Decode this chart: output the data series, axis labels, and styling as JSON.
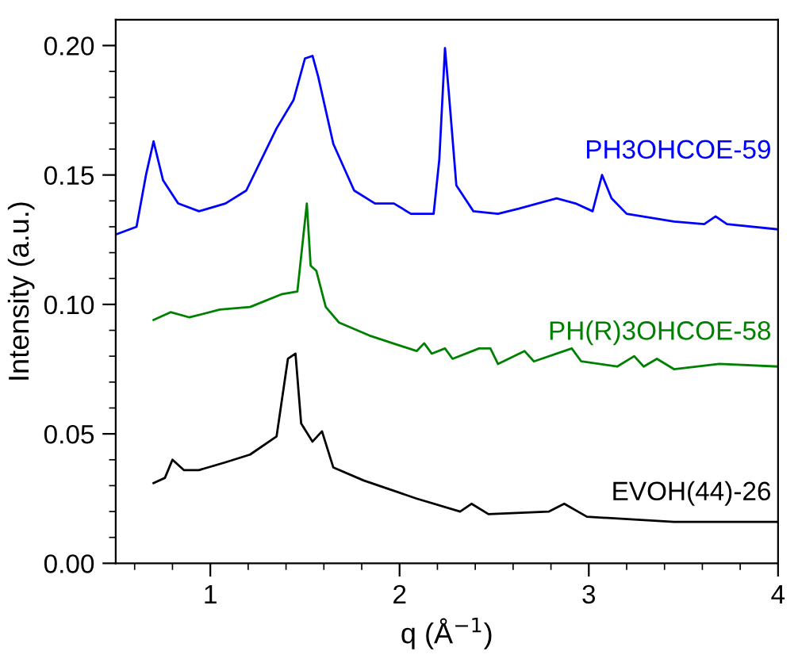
{
  "chart_data": {
    "type": "line",
    "xlabel": "q (Å$^{−1}$)",
    "ylabel": "Intensity (a.u.)",
    "xlim": [
      0.5,
      4
    ],
    "ylim": [
      0,
      0.21
    ],
    "xticks": [
      {
        "value": 0.6,
        "label": null
      },
      {
        "value": 0.8,
        "label": null
      },
      1,
      {
        "value": 1.2,
        "label": null
      },
      {
        "value": 1.4,
        "label": null
      },
      {
        "value": 1.6,
        "label": null
      },
      {
        "value": 1.8,
        "label": null
      },
      2,
      {
        "value": 2.2,
        "label": null
      },
      {
        "value": 2.4,
        "label": null
      },
      {
        "value": 2.6,
        "label": null
      },
      {
        "value": 2.8,
        "label": null
      },
      3,
      {
        "value": 3.2,
        "label": null
      },
      {
        "value": 3.4,
        "label": null
      },
      {
        "value": 3.6,
        "label": null
      },
      {
        "value": 3.8,
        "label": null
      },
      4
    ],
    "yticks": [
      {
        "value": 0,
        "label": "0.00"
      },
      {
        "value": 0.01,
        "label": null
      },
      {
        "value": 0.02,
        "label": null
      },
      {
        "value": 0.03,
        "label": null
      },
      {
        "value": 0.04,
        "label": null
      },
      0.05,
      {
        "value": 0.06,
        "label": null
      },
      {
        "value": 0.07,
        "label": null
      },
      {
        "value": 0.08,
        "label": null
      },
      {
        "value": 0.09,
        "label": null
      },
      {
        "value": 0.1,
        "label": "0.10"
      },
      {
        "value": 0.11,
        "label": null
      },
      {
        "value": 0.12,
        "label": null
      },
      {
        "value": 0.13,
        "label": null
      },
      {
        "value": 0.14,
        "label": null
      },
      0.15,
      {
        "value": 0.16,
        "label": null
      },
      {
        "value": 0.17,
        "label": null
      },
      {
        "value": 0.18,
        "label": null
      },
      {
        "value": 0.19,
        "label": null
      },
      {
        "value": 0.2,
        "label": "0.20"
      }
    ],
    "grid": false,
    "legend": false,
    "marker": "none",
    "line_style": "solid",
    "series": [
      {
        "name": "PH3OHCOE-59",
        "color": "#0000ff",
        "x": [
          0.5,
          0.61,
          0.66,
          0.7,
          0.75,
          0.83,
          0.94,
          1.08,
          1.19,
          1.35,
          1.44,
          1.5,
          1.54,
          1.57,
          1.65,
          1.76,
          1.87,
          1.97,
          2.06,
          2.18,
          2.21,
          2.24,
          2.26,
          2.3,
          2.39,
          2.52,
          2.63,
          2.83,
          2.93,
          3.02,
          3.07,
          3.12,
          3.2,
          3.45,
          3.61,
          3.67,
          3.73,
          4.0
        ],
        "values": [
          0.127,
          0.13,
          0.15,
          0.163,
          0.148,
          0.139,
          0.136,
          0.139,
          0.144,
          0.168,
          0.179,
          0.195,
          0.196,
          0.188,
          0.162,
          0.144,
          0.139,
          0.139,
          0.135,
          0.135,
          0.156,
          0.199,
          0.182,
          0.146,
          0.136,
          0.135,
          0.137,
          0.141,
          0.139,
          0.136,
          0.15,
          0.141,
          0.135,
          0.132,
          0.131,
          0.134,
          0.131,
          0.129
        ]
      },
      {
        "name": "PH(R)3OHCOE-58",
        "color": "#008000",
        "x": [
          0.7,
          0.79,
          0.89,
          1.05,
          1.21,
          1.38,
          1.46,
          1.51,
          1.53,
          1.56,
          1.61,
          1.68,
          1.84,
          2.09,
          2.13,
          2.17,
          2.24,
          2.28,
          2.42,
          2.48,
          2.52,
          2.66,
          2.71,
          2.91,
          2.96,
          3.15,
          3.24,
          3.29,
          3.36,
          3.45,
          3.69,
          4.0
        ],
        "values": [
          0.094,
          0.097,
          0.095,
          0.098,
          0.099,
          0.104,
          0.105,
          0.139,
          0.115,
          0.113,
          0.099,
          0.093,
          0.088,
          0.082,
          0.085,
          0.081,
          0.083,
          0.079,
          0.083,
          0.083,
          0.077,
          0.082,
          0.078,
          0.083,
          0.078,
          0.076,
          0.08,
          0.076,
          0.079,
          0.075,
          0.077,
          0.076
        ]
      },
      {
        "name": "EVOH(44)-26",
        "color": "#000000",
        "x": [
          0.7,
          0.76,
          0.8,
          0.86,
          0.94,
          1.08,
          1.21,
          1.35,
          1.41,
          1.45,
          1.48,
          1.54,
          1.59,
          1.65,
          1.81,
          2.09,
          2.32,
          2.38,
          2.47,
          2.79,
          2.87,
          2.99,
          3.45,
          4.0
        ],
        "values": [
          0.031,
          0.033,
          0.04,
          0.036,
          0.036,
          0.039,
          0.042,
          0.049,
          0.079,
          0.081,
          0.054,
          0.047,
          0.051,
          0.037,
          0.032,
          0.025,
          0.02,
          0.023,
          0.019,
          0.02,
          0.023,
          0.018,
          0.016,
          0.016
        ]
      }
    ]
  }
}
